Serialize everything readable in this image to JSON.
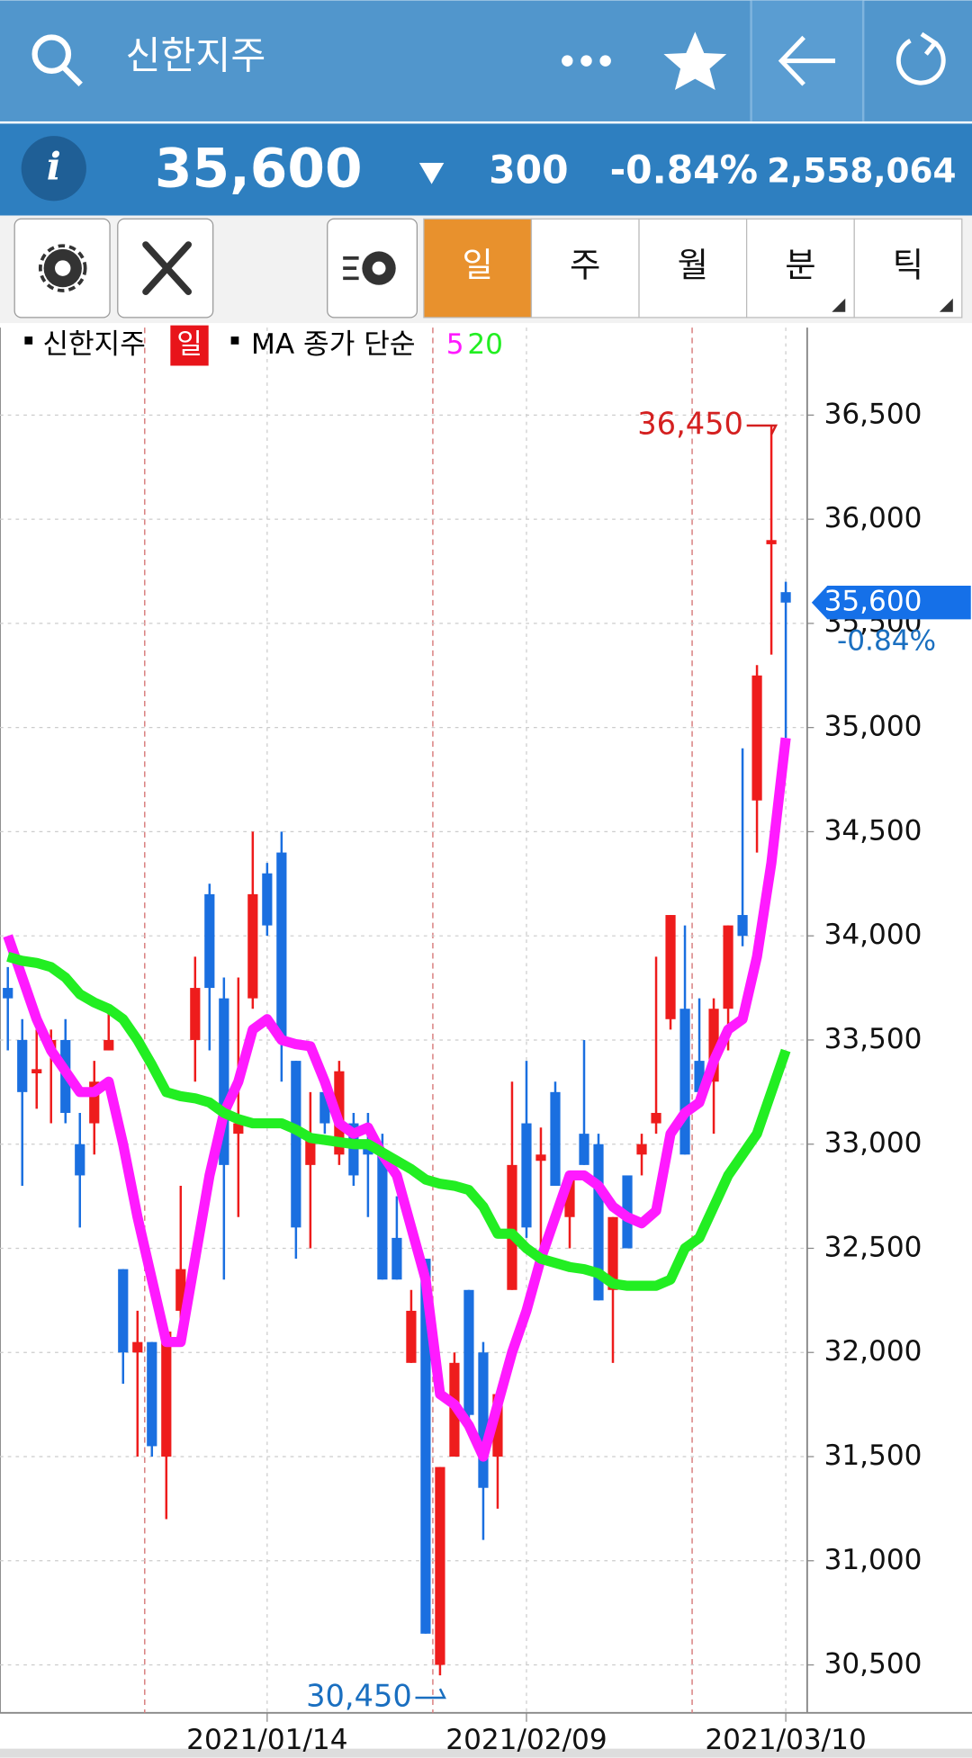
{
  "header": {
    "title": "신한지주",
    "price": "35,600",
    "change": "300",
    "change_pct": "-0.84%",
    "volume": "2,558,064"
  },
  "periods": [
    "일",
    "주",
    "월",
    "분",
    "틱"
  ],
  "chart_data": {
    "type": "candlestick",
    "legend": {
      "candle_name": "신한지주",
      "candle_period": "일",
      "ma_label": "MA 종가 단순"
    },
    "categories": [
      null,
      null,
      null,
      null,
      null,
      null,
      null,
      null,
      null,
      null,
      null,
      null,
      null,
      null,
      null,
      null,
      null,
      null,
      "2021/01/14",
      null,
      null,
      null,
      null,
      null,
      null,
      null,
      null,
      null,
      null,
      null,
      null,
      null,
      null,
      null,
      null,
      null,
      "2021/02/09",
      null,
      null,
      null,
      null,
      null,
      null,
      null,
      null,
      null,
      null,
      null,
      null,
      null,
      null,
      null,
      null,
      null,
      "2021/03/10"
    ],
    "candles": {
      "up_color": "#ee1c1c",
      "down_color": "#1a6fe0",
      "open": [
        33750,
        33500,
        33340,
        33450,
        33500,
        33000,
        33100,
        33450,
        32400,
        32000,
        32050,
        31500,
        32200,
        33500,
        34200,
        33700,
        33050,
        33700,
        34300,
        34400,
        33400,
        32900,
        33250,
        32950,
        33100,
        33000,
        32950,
        32550,
        31950,
        32450,
        30500,
        31500,
        32300,
        32000,
        31500,
        32300,
        33100,
        32920,
        33250,
        32650,
        33050,
        33000,
        32300,
        32850,
        32950,
        33100,
        33600,
        33650,
        33400,
        33300,
        33650,
        34100,
        34650,
        35880,
        35650
      ],
      "high": [
        33850,
        33600,
        33550,
        33550,
        33600,
        33150,
        33400,
        33650,
        32400,
        32200,
        32050,
        32100,
        32800,
        33900,
        34250,
        33800,
        33800,
        34500,
        34350,
        34500,
        33400,
        33250,
        33350,
        33400,
        33150,
        33150,
        33050,
        32750,
        32300,
        32450,
        31450,
        32000,
        32300,
        32050,
        31800,
        33300,
        33400,
        33080,
        33300,
        32850,
        33500,
        33050,
        32650,
        32850,
        33050,
        33900,
        34100,
        34050,
        33700,
        33700,
        34050,
        34900,
        35300,
        36450,
        35700
      ],
      "low": [
        33450,
        32800,
        33170,
        33100,
        33100,
        32600,
        32950,
        33450,
        31850,
        31500,
        31500,
        31200,
        32100,
        33300,
        33450,
        32350,
        32650,
        33650,
        34000,
        33300,
        32450,
        32500,
        33050,
        32900,
        32800,
        32650,
        32350,
        32350,
        31950,
        30650,
        30450,
        31500,
        31650,
        31100,
        31250,
        32300,
        32550,
        32500,
        32800,
        32500,
        32900,
        32250,
        31950,
        32500,
        32850,
        33050,
        33550,
        32950,
        33250,
        33050,
        33450,
        33950,
        34400,
        35350,
        34950
      ],
      "close": [
        33700,
        33250,
        33360,
        33500,
        33150,
        32850,
        33300,
        33500,
        32000,
        32050,
        31550,
        32100,
        32400,
        33750,
        33750,
        32900,
        33100,
        34200,
        34050,
        33500,
        32600,
        33050,
        33100,
        33350,
        32850,
        32950,
        32350,
        32350,
        32200,
        30650,
        31450,
        31950,
        31700,
        31350,
        31800,
        32900,
        32600,
        32950,
        32800,
        32850,
        32900,
        32250,
        32650,
        32500,
        33000,
        33150,
        34100,
        32950,
        33250,
        33650,
        34050,
        34000,
        35250,
        35900,
        35600
      ]
    },
    "series": [
      {
        "name": "5",
        "color": "#ff1aff",
        "values": [
          34000,
          33800,
          33600,
          33450,
          33350,
          33250,
          33250,
          33300,
          33000,
          32650,
          32350,
          32050,
          32050,
          32450,
          32850,
          33150,
          33300,
          33550,
          33600,
          33500,
          33480,
          33470,
          33300,
          33100,
          33050,
          33080,
          32950,
          32850,
          32600,
          32350,
          31800,
          31750,
          31650,
          31500,
          31750,
          32000,
          32200,
          32450,
          32650,
          32850,
          32850,
          32800,
          32700,
          32650,
          32620,
          32680,
          33050,
          33150,
          33200,
          33400,
          33550,
          33600,
          33900,
          34350,
          34950
        ]
      },
      {
        "name": "20",
        "color": "#22ee22",
        "values": [
          33900,
          33880,
          33870,
          33850,
          33800,
          33720,
          33680,
          33650,
          33600,
          33500,
          33380,
          33250,
          33230,
          33220,
          33200,
          33150,
          33120,
          33100,
          33100,
          33100,
          33070,
          33030,
          33020,
          33010,
          33000,
          33000,
          32960,
          32920,
          32880,
          32830,
          32810,
          32800,
          32780,
          32700,
          32570,
          32570,
          32500,
          32450,
          32430,
          32410,
          32400,
          32380,
          32330,
          32320,
          32320,
          32320,
          32350,
          32500,
          32550,
          32700,
          32850,
          32950,
          33050,
          33250,
          33450
        ]
      }
    ],
    "ylim": [
      30270,
      36920
    ],
    "yticks": [
      {
        "value": 30500,
        "label": "30,500"
      },
      {
        "value": 31000,
        "label": "31,000"
      },
      {
        "value": 31500,
        "label": "31,500"
      },
      {
        "value": 32000,
        "label": "32,000"
      },
      {
        "value": 32500,
        "label": "32,500"
      },
      {
        "value": 33000,
        "label": "33,000"
      },
      {
        "value": 33500,
        "label": "33,500"
      },
      {
        "value": 34000,
        "label": "34,000"
      },
      {
        "value": 34500,
        "label": "34,500"
      },
      {
        "value": 35000,
        "label": "35,000"
      },
      {
        "value": 35500,
        "label": "35,500"
      },
      {
        "value": 36000,
        "label": "36,000"
      },
      {
        "value": 36500,
        "label": "36,500"
      }
    ],
    "grid": true,
    "annotations": {
      "high": {
        "value": 36450,
        "label": "36,450"
      },
      "low": {
        "value": 30450,
        "label": "30,450"
      },
      "last": {
        "value": 35600,
        "label": "35,600",
        "change": "-0.84%"
      }
    }
  }
}
